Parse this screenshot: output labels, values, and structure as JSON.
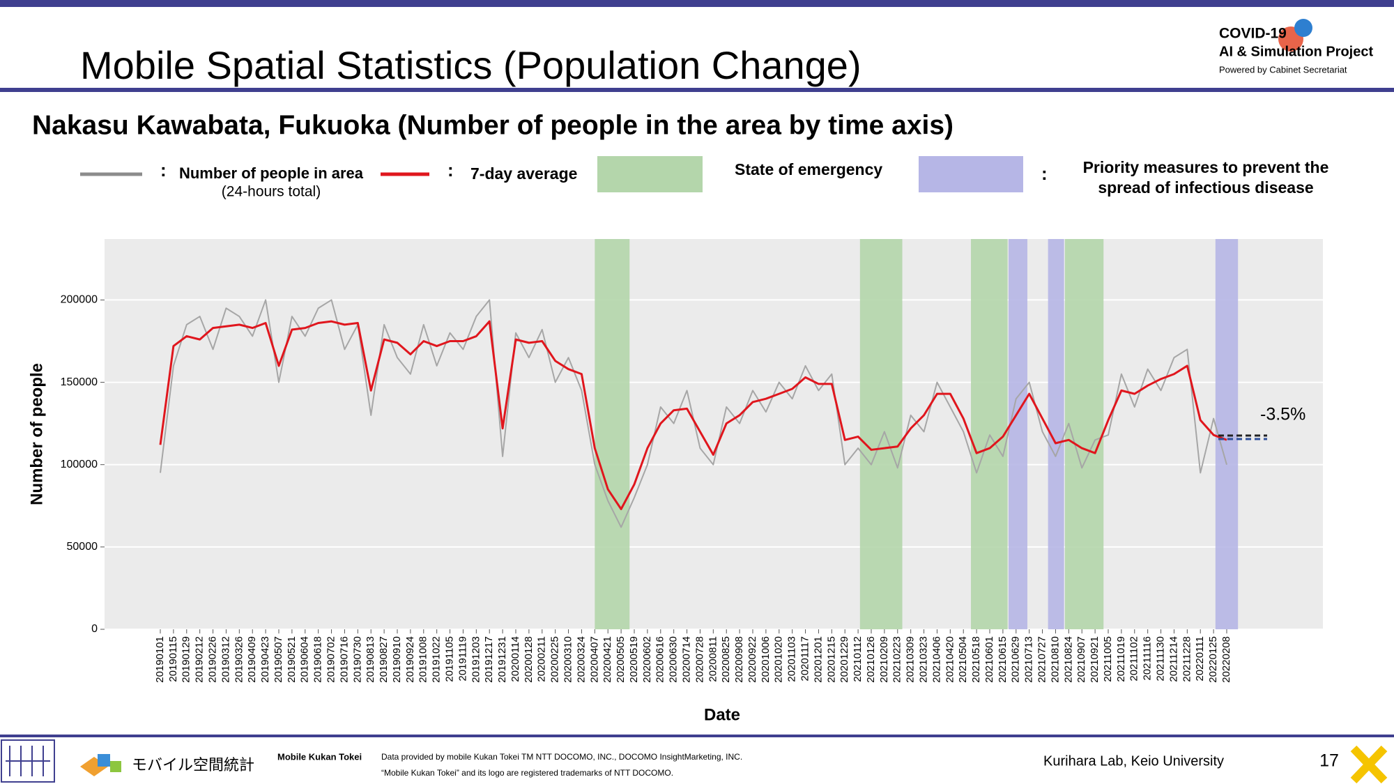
{
  "slide": {
    "title": "Mobile Spatial Statistics (Population Change)",
    "logo": {
      "name": "COVID-19",
      "project": "AI & Simulation Project",
      "powered": "Powered by Cabinet Secretariat"
    },
    "footer": {
      "brand_jp": "モバイル空間統計",
      "brand": "Mobile Kukan Tokei",
      "credit": "Data provided by mobile Kukan Tokei TM NTT DOCOMO, INC., DOCOMO InsightMarketing, INC.",
      "trademark": "“Mobile Kukan Tokei” and its logo are registered trademarks of NTT DOCOMO.",
      "lab": "Kurihara Lab, Keio University",
      "page": "17"
    }
  },
  "chart_data": {
    "type": "line",
    "title": "Nakasu Kawabata, Fukuoka (Number of people in the area by time axis)",
    "xlabel": "Date",
    "ylabel": "Number of people",
    "separator": ":",
    "categories": [
      "20190101",
      "20190115",
      "20190129",
      "20190212",
      "20190226",
      "20190312",
      "20190326",
      "20190409",
      "20190423",
      "20190507",
      "20190521",
      "20190604",
      "20190618",
      "20190702",
      "20190716",
      "20190730",
      "20190813",
      "20190827",
      "20190910",
      "20190924",
      "20191008",
      "20191022",
      "20191105",
      "20191119",
      "20191203",
      "20191217",
      "20191231",
      "20200114",
      "20200128",
      "20200211",
      "20200225",
      "20200310",
      "20200324",
      "20200407",
      "20200421",
      "20200505",
      "20200519",
      "20200602",
      "20200616",
      "20200630",
      "20200714",
      "20200728",
      "20200811",
      "20200825",
      "20200908",
      "20200922",
      "20201006",
      "20201020",
      "20201103",
      "20201117",
      "20201201",
      "20201215",
      "20201229",
      "20210112",
      "20210126",
      "20210209",
      "20210223",
      "20210309",
      "20210323",
      "20210406",
      "20210420",
      "20210504",
      "20210518",
      "20210601",
      "20210615",
      "20210629",
      "20210713",
      "20210727",
      "20210810",
      "20210824",
      "20210907",
      "20210921",
      "20211005",
      "20211019",
      "20211102",
      "20211116",
      "20211130",
      "20211214",
      "20211228",
      "20220111",
      "20220125",
      "20220208"
    ],
    "series": [
      {
        "name": "Number of people in area",
        "note": "(24-hours total)",
        "color": "#a6a6a6",
        "values": [
          95000,
          160000,
          185000,
          190000,
          170000,
          195000,
          190000,
          178000,
          200000,
          150000,
          190000,
          178000,
          195000,
          200000,
          170000,
          185000,
          130000,
          185000,
          165000,
          155000,
          185000,
          160000,
          180000,
          170000,
          190000,
          200000,
          105000,
          180000,
          165000,
          182000,
          150000,
          165000,
          145000,
          100000,
          78000,
          62000,
          80000,
          100000,
          135000,
          125000,
          145000,
          110000,
          100000,
          135000,
          125000,
          145000,
          132000,
          150000,
          140000,
          160000,
          145000,
          155000,
          100000,
          110000,
          100000,
          120000,
          98000,
          130000,
          120000,
          150000,
          135000,
          120000,
          95000,
          118000,
          105000,
          140000,
          150000,
          120000,
          105000,
          125000,
          98000,
          115000,
          118000,
          155000,
          135000,
          158000,
          145000,
          165000,
          170000,
          95000,
          128000,
          100000
        ]
      },
      {
        "name": "7-day average",
        "color": "#e0161d",
        "values": [
          112000,
          172000,
          178000,
          176000,
          183000,
          184000,
          185000,
          183000,
          186000,
          160000,
          182000,
          183000,
          186000,
          187000,
          185000,
          186000,
          145000,
          176000,
          174000,
          167000,
          175000,
          172000,
          175000,
          175000,
          178000,
          187000,
          122000,
          176000,
          174000,
          175000,
          163000,
          158000,
          155000,
          110000,
          85000,
          73000,
          88000,
          110000,
          125000,
          133000,
          134000,
          120000,
          106000,
          125000,
          130000,
          138000,
          140000,
          143000,
          146000,
          153000,
          149000,
          149000,
          115000,
          117000,
          109000,
          110000,
          111000,
          122000,
          130000,
          143000,
          143000,
          128000,
          107000,
          110000,
          117000,
          130000,
          143000,
          128000,
          113000,
          115000,
          110000,
          107000,
          127000,
          145000,
          143000,
          148000,
          152000,
          155000,
          160000,
          127000,
          118000,
          115000
        ]
      }
    ],
    "bands": [
      {
        "name": "State of emergency",
        "color": "#b4d6ab",
        "periods": [
          [
            "20200407",
            "20200514"
          ],
          [
            "20210114",
            "20210228"
          ],
          [
            "20210512",
            "20210620"
          ],
          [
            "20210820",
            "20210930"
          ]
        ]
      },
      {
        "name": "Priority measures to prevent the spread of infectious disease",
        "color": "#b6b6e6",
        "periods": [
          [
            "20210621",
            "20210711"
          ],
          [
            "20210802",
            "20210819"
          ],
          [
            "20220127",
            "20220220"
          ]
        ]
      }
    ],
    "annotation": "-3.5%",
    "ylim": [
      0,
      237000
    ],
    "yticks": [
      0,
      50000,
      100000,
      150000,
      200000
    ],
    "grid": true
  }
}
